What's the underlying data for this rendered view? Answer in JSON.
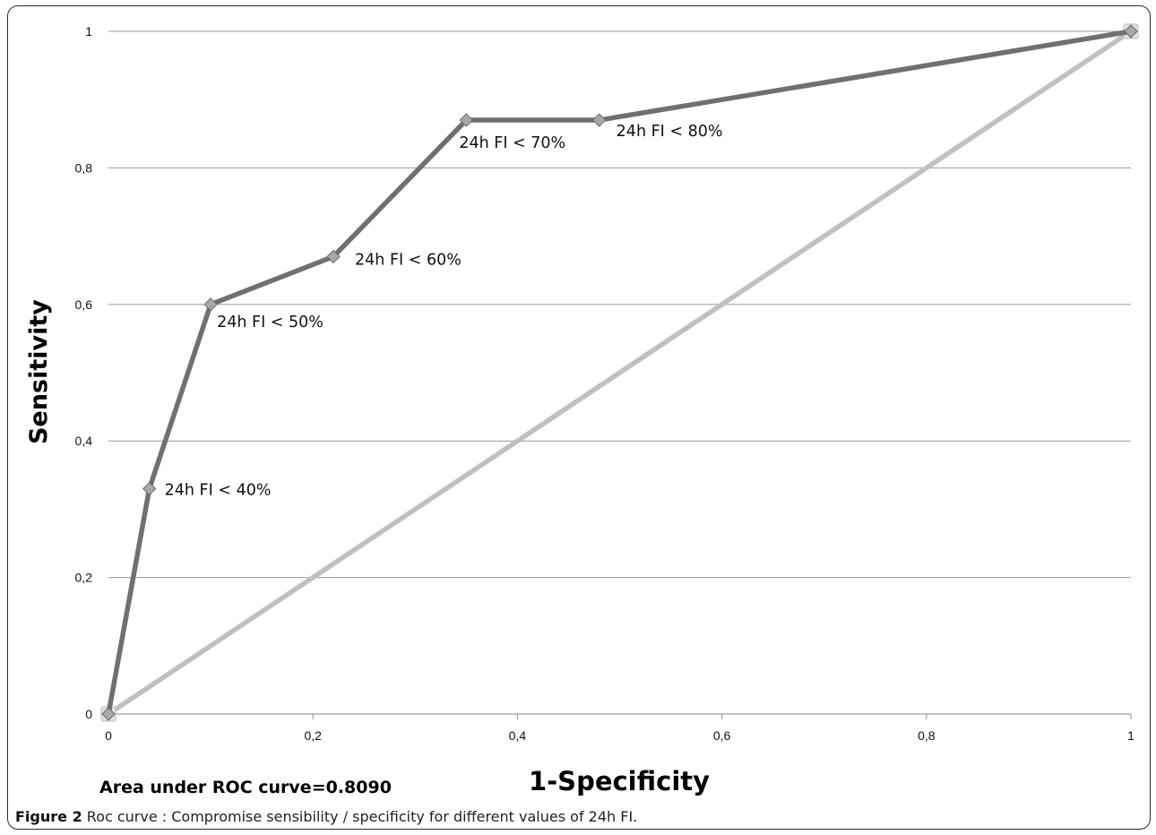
{
  "caption": {
    "label": "Figure 2",
    "text": "Roc curve : Compromise sensibility / specificity for different values of 24h FI."
  },
  "chart_data": {
    "type": "line",
    "xlabel": "1-Specificity",
    "ylabel": "Sensitivity",
    "xlim": [
      0,
      1
    ],
    "ylim": [
      0,
      1
    ],
    "x_ticks": [
      "0",
      "0,2",
      "0,4",
      "0,6",
      "0,8",
      "1"
    ],
    "y_ticks": [
      "0",
      "0,2",
      "0,4",
      "0,6",
      "0,8",
      "1"
    ],
    "grid": "horizontal",
    "annotation": "Area under ROC curve=0.8090",
    "series": [
      {
        "color": "#707070",
        "marker": "diamond",
        "points": [
          {
            "x": 0,
            "y": 0,
            "label": ""
          },
          {
            "x": 0.04,
            "y": 0.33,
            "label": "24h FI < 40%"
          },
          {
            "x": 0.1,
            "y": 0.6,
            "label": "24h FI < 50%"
          },
          {
            "x": 0.22,
            "y": 0.67,
            "label": "24h FI < 60%"
          },
          {
            "x": 0.35,
            "y": 0.87,
            "label": "24h FI < 70%"
          },
          {
            "x": 0.48,
            "y": 0.87,
            "label": "24h FI < 80%"
          },
          {
            "x": 1,
            "y": 1,
            "label": ""
          }
        ]
      },
      {
        "color": "#c0c0c0",
        "marker": "square",
        "points": [
          {
            "x": 0,
            "y": 0,
            "label": ""
          },
          {
            "x": 1,
            "y": 1,
            "label": ""
          }
        ]
      }
    ]
  }
}
